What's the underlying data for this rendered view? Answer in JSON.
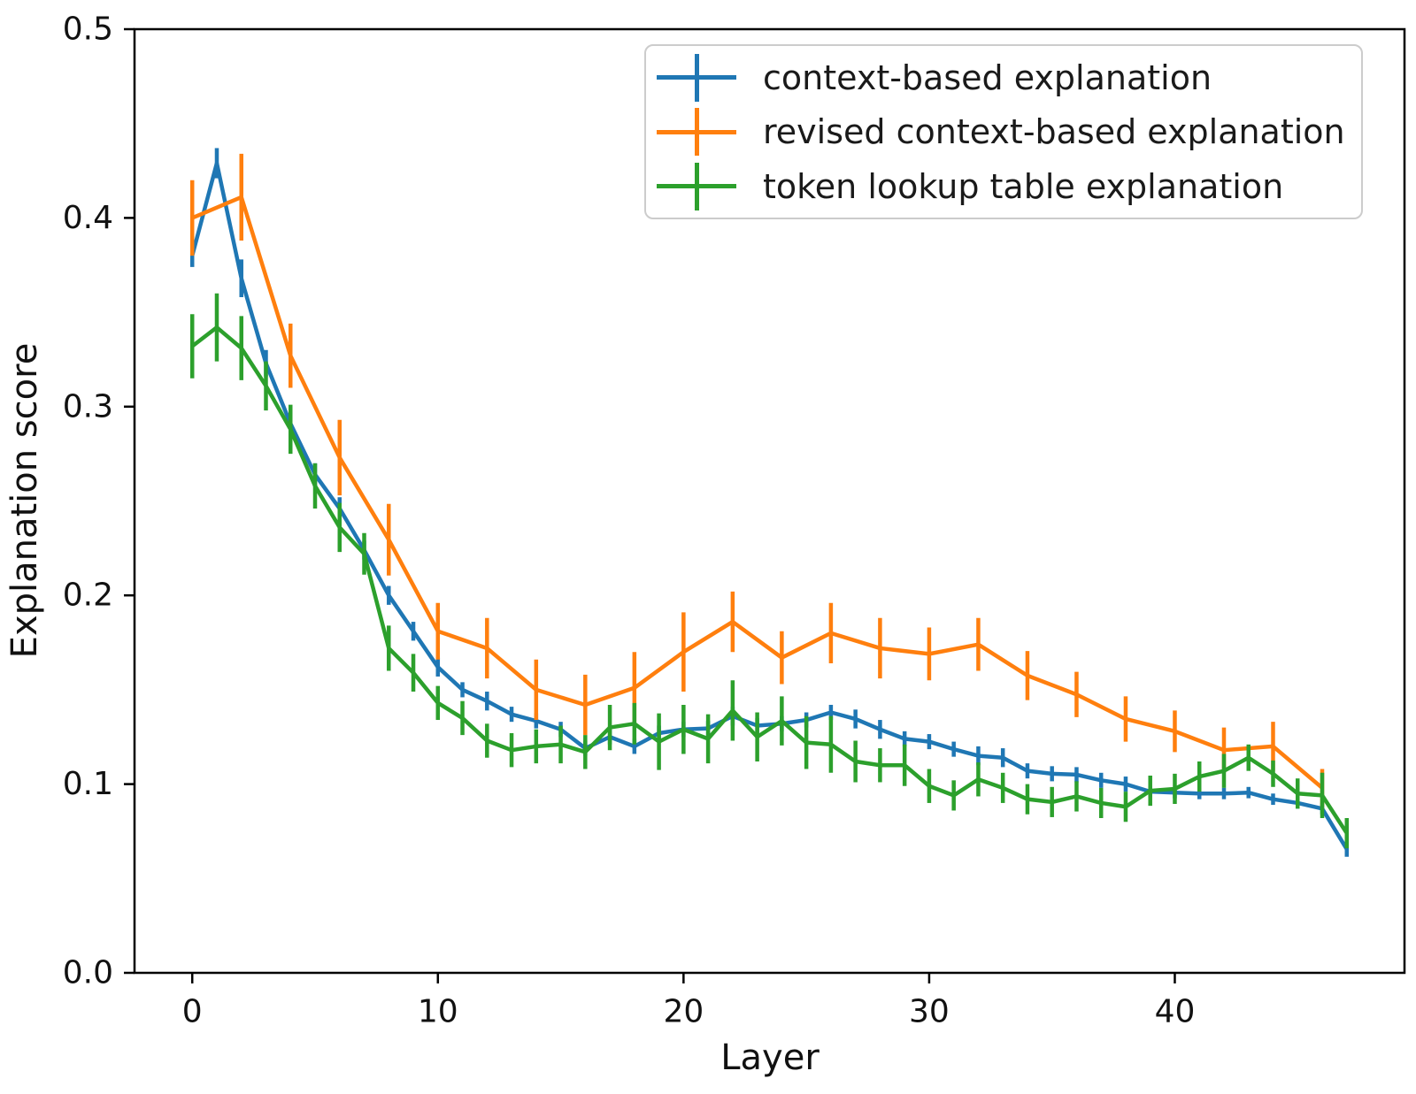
{
  "chart_data": {
    "type": "line",
    "title": "",
    "xlabel": "Layer",
    "ylabel": "Explanation score",
    "xlim": [
      -2.35,
      49.35
    ],
    "ylim": [
      0.0,
      0.5
    ],
    "grid": false,
    "x_ticks": {
      "values": [
        0,
        10,
        20,
        30,
        40
      ],
      "labels": [
        "0",
        "10",
        "20",
        "30",
        "40"
      ]
    },
    "y_ticks": {
      "values": [
        0.0,
        0.1,
        0.2,
        0.3,
        0.4,
        0.5
      ],
      "labels": [
        "0.0",
        "0.1",
        "0.2",
        "0.3",
        "0.4",
        "0.5"
      ]
    },
    "legend": {
      "location": "upper right"
    },
    "series": [
      {
        "name": "context-based explanation",
        "color": "#1f77b4",
        "x": [
          0,
          1,
          2,
          3,
          4,
          5,
          6,
          7,
          8,
          9,
          10,
          11,
          12,
          13,
          14,
          15,
          16,
          17,
          18,
          19,
          20,
          21,
          22,
          23,
          24,
          25,
          26,
          27,
          28,
          29,
          30,
          31,
          32,
          33,
          34,
          35,
          36,
          37,
          38,
          39,
          40,
          41,
          42,
          43,
          44,
          45,
          46,
          47
        ],
        "y": [
          0.38,
          0.429,
          0.368,
          0.323,
          0.291,
          0.264,
          0.246,
          0.224,
          0.2,
          0.181,
          0.162,
          0.15,
          0.144,
          0.137,
          0.1335,
          0.129,
          0.119,
          0.125,
          0.12,
          0.127,
          0.129,
          0.1295,
          0.136,
          0.131,
          0.132,
          0.134,
          0.138,
          0.1345,
          0.129,
          0.124,
          0.1225,
          0.1185,
          0.115,
          0.114,
          0.107,
          0.1055,
          0.105,
          0.102,
          0.1,
          0.096,
          0.0955,
          0.095,
          0.095,
          0.0955,
          0.092,
          0.09,
          0.087,
          0.0655
        ],
        "yerr": [
          0.006,
          0.008,
          0.01,
          0.007,
          0.006,
          0.006,
          0.006,
          0.005,
          0.005,
          0.005,
          0.005,
          0.004,
          0.005,
          0.004,
          0.004,
          0.004,
          0.004,
          0.004,
          0.004,
          0.004,
          0.004,
          0.004,
          0.005,
          0.004,
          0.004,
          0.004,
          0.004,
          0.005,
          0.005,
          0.004,
          0.004,
          0.004,
          0.005,
          0.005,
          0.004,
          0.004,
          0.004,
          0.004,
          0.004,
          0.003,
          0.003,
          0.003,
          0.003,
          0.003,
          0.003,
          0.003,
          0.003,
          0.004
        ]
      },
      {
        "name": "revised context-based explanation",
        "color": "#ff7f0e",
        "x": [
          0,
          2,
          4,
          6,
          8,
          10,
          12,
          14,
          16,
          18,
          20,
          22,
          24,
          26,
          28,
          30,
          32,
          34,
          36,
          38,
          40,
          42,
          44,
          46
        ],
        "y": [
          0.4,
          0.411,
          0.327,
          0.273,
          0.2295,
          0.181,
          0.172,
          0.15,
          0.142,
          0.151,
          0.17,
          0.186,
          0.167,
          0.18,
          0.172,
          0.169,
          0.174,
          0.1575,
          0.1475,
          0.1345,
          0.128,
          0.118,
          0.12,
          0.098
        ],
        "yerr": [
          0.02,
          0.023,
          0.017,
          0.02,
          0.019,
          0.015,
          0.016,
          0.016,
          0.016,
          0.019,
          0.021,
          0.016,
          0.014,
          0.016,
          0.016,
          0.014,
          0.014,
          0.013,
          0.012,
          0.012,
          0.011,
          0.012,
          0.013,
          0.01
        ]
      },
      {
        "name": "token lookup table explanation",
        "color": "#2ca02c",
        "x": [
          0,
          1,
          2,
          3,
          4,
          5,
          6,
          7,
          8,
          9,
          10,
          11,
          12,
          13,
          14,
          15,
          16,
          17,
          18,
          19,
          20,
          21,
          22,
          23,
          24,
          25,
          26,
          27,
          28,
          29,
          30,
          31,
          32,
          33,
          34,
          35,
          36,
          37,
          38,
          39,
          40,
          41,
          42,
          43,
          44,
          45,
          46,
          47
        ],
        "y": [
          0.332,
          0.342,
          0.331,
          0.311,
          0.288,
          0.258,
          0.236,
          0.222,
          0.172,
          0.159,
          0.143,
          0.135,
          0.123,
          0.118,
          0.12,
          0.121,
          0.117,
          0.13,
          0.132,
          0.1225,
          0.129,
          0.124,
          0.139,
          0.125,
          0.1335,
          0.122,
          0.121,
          0.112,
          0.11,
          0.11,
          0.099,
          0.094,
          0.1025,
          0.098,
          0.092,
          0.0905,
          0.0935,
          0.09,
          0.088,
          0.0965,
          0.0975,
          0.104,
          0.107,
          0.114,
          0.1055,
          0.095,
          0.094,
          0.074
        ],
        "yerr": [
          0.017,
          0.018,
          0.017,
          0.013,
          0.013,
          0.012,
          0.013,
          0.011,
          0.012,
          0.01,
          0.009,
          0.009,
          0.009,
          0.009,
          0.009,
          0.01,
          0.009,
          0.012,
          0.011,
          0.015,
          0.013,
          0.013,
          0.016,
          0.013,
          0.013,
          0.014,
          0.015,
          0.011,
          0.009,
          0.011,
          0.009,
          0.008,
          0.009,
          0.008,
          0.008,
          0.008,
          0.008,
          0.008,
          0.008,
          0.008,
          0.008,
          0.008,
          0.009,
          0.007,
          0.007,
          0.008,
          0.012,
          0.008
        ]
      }
    ]
  }
}
